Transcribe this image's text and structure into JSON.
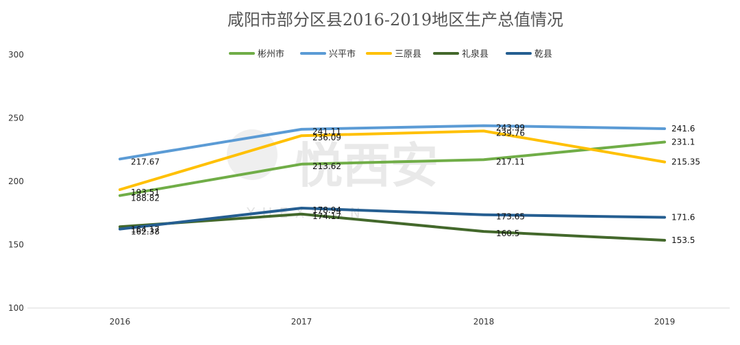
{
  "chart_data": {
    "type": "line",
    "title": "咸阳市部分区县2016-2019地区生产总值情况",
    "x": [
      "2016",
      "2017",
      "2018",
      "2019"
    ],
    "ylim": [
      100,
      300
    ],
    "yticks": [
      100,
      150,
      200,
      250,
      300
    ],
    "grid": false,
    "legend_position": "top",
    "series": [
      {
        "name": "彬州市",
        "color": "#70ad47",
        "values": [
          188.82,
          213.62,
          217.11,
          231.1
        ],
        "labels": [
          "188.82",
          "213.62",
          "217.11",
          "231.1"
        ]
      },
      {
        "name": "兴平市",
        "color": "#5b9bd5",
        "values": [
          217.67,
          241.11,
          243.99,
          241.6
        ],
        "labels": [
          "217.67",
          "241.11",
          "243.99",
          "241.6"
        ]
      },
      {
        "name": "三原县",
        "color": "#ffc000",
        "values": [
          193.51,
          236.09,
          239.76,
          215.35
        ],
        "labels": [
          "193.51",
          "236.09",
          "239.76",
          "215.35"
        ]
      },
      {
        "name": "礼泉县",
        "color": "#43682b",
        "values": [
          164.17,
          174.17,
          160.5,
          153.5
        ],
        "labels": [
          "164.17",
          "174.17",
          "160.5",
          "153.5"
        ]
      },
      {
        "name": "乾县",
        "color": "#255e91",
        "values": [
          162.38,
          178.94,
          173.65,
          171.6
        ],
        "labels": [
          "162.38",
          "178.94",
          "173.65",
          "171.6"
        ]
      }
    ]
  },
  "watermark": {
    "text": "悦西安",
    "letters": "Y U E X I ' A N"
  }
}
